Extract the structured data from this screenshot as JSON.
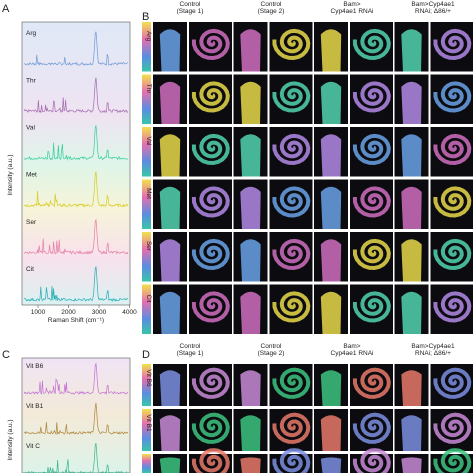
{
  "panel_a": {
    "label": "A",
    "y_axis_label": "Intensity (a.u.)",
    "x_axis_label": "Raman Shift (cm⁻¹)",
    "x_ticks": [
      1000,
      2000,
      3000,
      4000
    ],
    "traces": [
      "Arg",
      "Thr",
      "Val",
      "Met",
      "Ser",
      "Cit"
    ]
  },
  "panel_b": {
    "label": "B",
    "columns": [
      [
        "Control",
        "(Stage 1)"
      ],
      [
        "Control",
        "(Stage 2)"
      ],
      [
        "Bam>",
        "Cyp4ae1 RNAi"
      ],
      [
        "Bam>Cyp4ae1",
        "RNAi; Δ86/+"
      ]
    ],
    "rows": [
      "Arg",
      "Thr",
      "Val",
      "Met",
      "Ser",
      "Cit"
    ]
  },
  "panel_c": {
    "label": "C",
    "y_axis_label": "Intensity (a.u.)",
    "traces": [
      "Vit B6",
      "Vit B1",
      "Vit C"
    ]
  },
  "panel_d": {
    "label": "D",
    "columns": [
      [
        "Control",
        "(Stage 1)"
      ],
      [
        "Control",
        "(Stage 2)"
      ],
      [
        "Bam>",
        "Cyp4ae1 RNAi"
      ],
      [
        "Bam>Cyp4ae1",
        "RNAi; Δ86/+"
      ]
    ],
    "rows": [
      "Vit B6",
      "Vit B1"
    ]
  }
}
